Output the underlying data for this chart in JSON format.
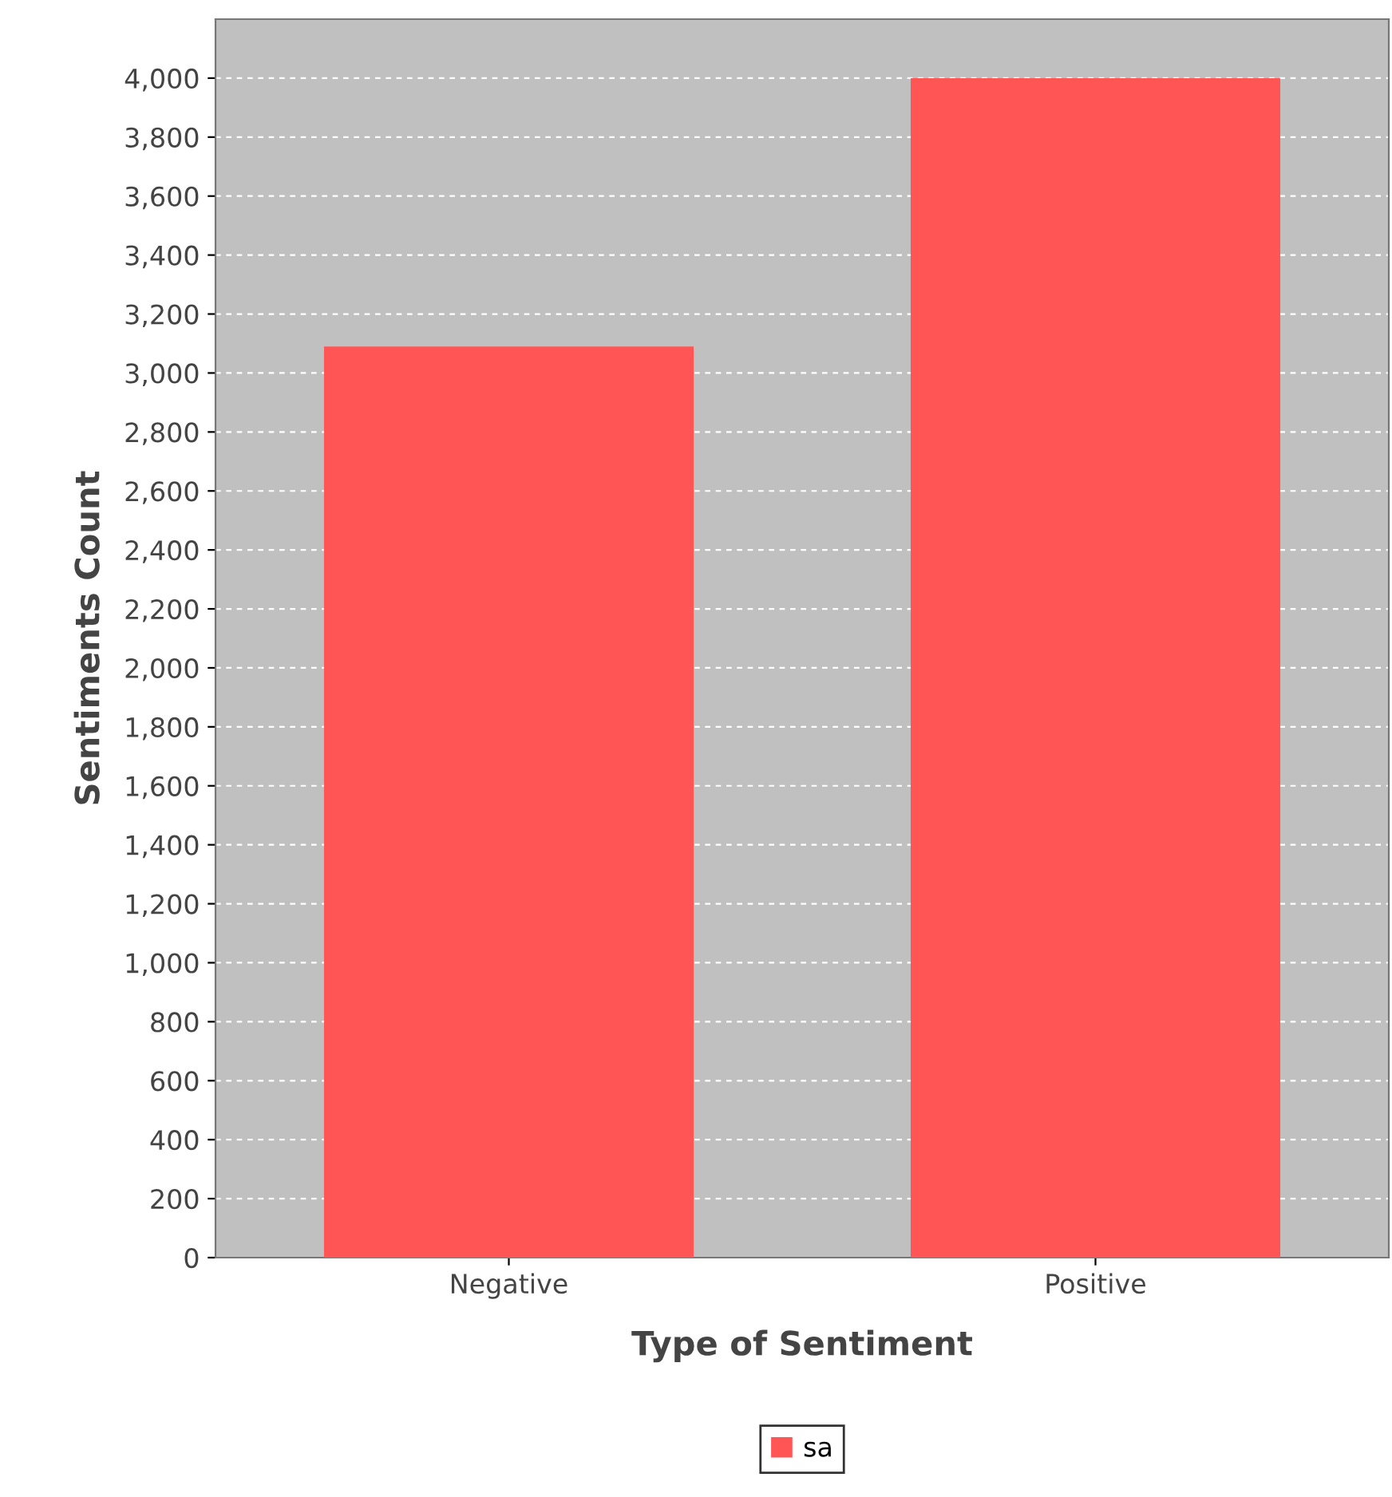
{
  "chart_data": {
    "type": "bar",
    "xlabel": "Type of Sentiment",
    "ylabel": "Sentiments Count",
    "categories": [
      "Negative",
      "Positive"
    ],
    "series": [
      {
        "name": "sa",
        "color": "#ff5555",
        "values": [
          3090,
          4000
        ]
      }
    ],
    "ylim": [
      0,
      4200
    ],
    "yticks": [
      0,
      200,
      400,
      600,
      800,
      {
        "value": 1000,
        "label": "1,000"
      },
      {
        "value": 1200,
        "label": "1,200"
      },
      {
        "value": 1400,
        "label": "1,400"
      },
      {
        "value": 1600,
        "label": "1,600"
      },
      {
        "value": 1800,
        "label": "1,800"
      },
      {
        "value": 2000,
        "label": "2,000"
      },
      {
        "value": 2200,
        "label": "2,200"
      },
      {
        "value": 2400,
        "label": "2,400"
      },
      {
        "value": 2600,
        "label": "2,600"
      },
      {
        "value": 2800,
        "label": "2,800"
      },
      {
        "value": 3000,
        "label": "3,000"
      },
      {
        "value": 3200,
        "label": "3,200"
      },
      {
        "value": 3400,
        "label": "3,400"
      },
      {
        "value": 3600,
        "label": "3,600"
      },
      {
        "value": 3800,
        "label": "3,800"
      },
      {
        "value": 4000,
        "label": "4,000"
      }
    ],
    "grid": "y",
    "legend": "bottom"
  }
}
